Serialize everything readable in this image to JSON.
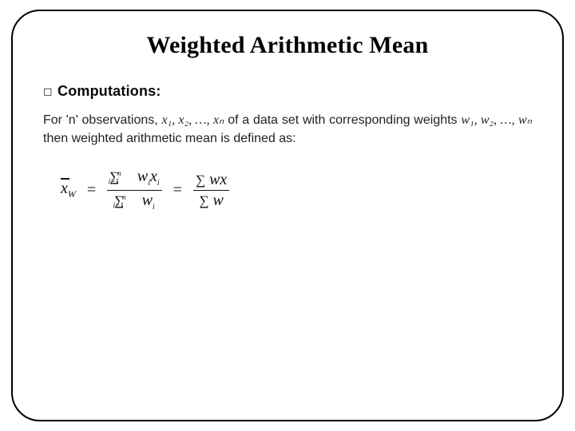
{
  "title": "Weighted Arithmetic Mean",
  "subheading": "Computations:",
  "paragraph_prefix": "For 'n' observations, ",
  "obs_seq": "x₁, x₂, …, xₙ",
  "paragraph_mid": " of a data set with corresponding weights ",
  "w_seq": "w₁, w₂, …, wₙ",
  "paragraph_suffix": " then weighted arithmetic mean is defined as:",
  "formula": {
    "lhs_symbol": "x",
    "lhs_sub": "W",
    "eq": "=",
    "frac1_num": "∑ₙᵢ₌₁ wᵢxᵢ",
    "frac1_den": "∑ₙᵢ₌₁ wᵢ",
    "frac2_num": "∑ wx",
    "frac2_den": "∑ w"
  }
}
